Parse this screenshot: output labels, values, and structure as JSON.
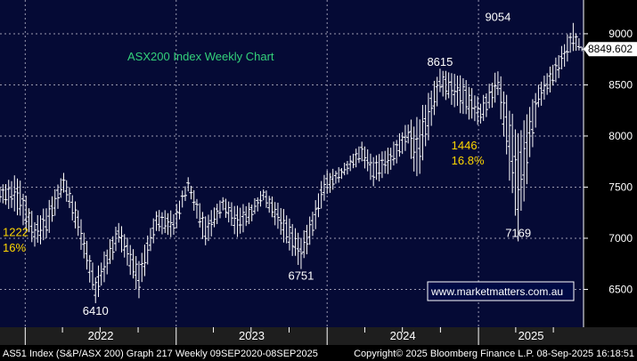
{
  "colors": {
    "background": "#000000",
    "plot_background": "#050a35",
    "grid": "#9a9ab0",
    "bars": "#ffffff",
    "annotation_white": "#ffffff",
    "annotation_yellow": "#ffd700",
    "title_green": "#33d17a",
    "year_strip": "#1e1e1e"
  },
  "footer": {
    "left": "AS51 Index (S&P/ASX 200) Graph 217  Weekly 09SEP2020-08SEP2025",
    "right": "Copyright© 2025 Bloomberg Finance L.P.    08-Sep-2025 16:18:51"
  },
  "chart_data": {
    "type": "ohlc",
    "title": "ASX200 Index Weekly Chart",
    "y_axis": {
      "ticks": [
        6500,
        7000,
        7500,
        8000,
        8500,
        9000
      ],
      "range": [
        6130,
        9330
      ],
      "position": "right"
    },
    "x_axis": {
      "years": [
        "2022",
        "2023",
        "2024",
        "2025"
      ],
      "range": [
        "2021-11-01",
        "2025-09-12"
      ]
    },
    "grid": true,
    "last_price": "8849.602",
    "watermark": "www.marketmatters.com.au",
    "annotations": [
      {
        "text": "9054",
        "x": "2025-02-17",
        "y": 9054,
        "color": "white",
        "placement": "above"
      },
      {
        "text": "8615",
        "x": "2024-09-30",
        "y": 8615,
        "color": "white",
        "placement": "above"
      },
      {
        "text": "7169",
        "x": "2025-04-07",
        "y": 7169,
        "color": "white",
        "placement": "below"
      },
      {
        "text": "6751",
        "x": "2023-10-30",
        "y": 6751,
        "color": "white",
        "placement": "below"
      },
      {
        "text": "6410",
        "x": "2022-06-20",
        "y": 6410,
        "color": "white",
        "placement": "below"
      },
      {
        "text": "1222",
        "x": "2021-11-01",
        "y": 7020,
        "color": "yellow",
        "placement": "right"
      },
      {
        "text": "16%",
        "x": "2021-11-01",
        "y": 6870,
        "color": "yellow",
        "placement": "right"
      },
      {
        "text": "1446",
        "x": "2024-10-21",
        "y": 7870,
        "color": "yellow",
        "placement": "right"
      },
      {
        "text": "16.8%",
        "x": "2024-10-21",
        "y": 7720,
        "color": "yellow",
        "placement": "right"
      }
    ],
    "series": [
      {
        "points": [
          [
            "2021-11-01",
            7380,
            7480
          ],
          [
            "2021-12-13",
            7300,
            7560
          ],
          [
            "2022-01-24",
            6960,
            7140
          ],
          [
            "2022-02-21",
            7040,
            7260
          ],
          [
            "2022-04-04",
            7480,
            7610
          ],
          [
            "2022-05-09",
            7050,
            7240
          ],
          [
            "2022-06-20",
            6410,
            6600
          ],
          [
            "2022-07-04",
            6550,
            6750
          ],
          [
            "2022-08-15",
            6980,
            7130
          ],
          [
            "2022-09-19",
            6630,
            6840
          ],
          [
            "2022-10-03",
            6480,
            6720
          ],
          [
            "2022-11-14",
            7100,
            7240
          ],
          [
            "2022-12-26",
            7050,
            7220
          ],
          [
            "2023-01-30",
            7480,
            7570
          ],
          [
            "2023-03-13",
            6960,
            7160
          ],
          [
            "2023-04-24",
            7280,
            7380
          ],
          [
            "2023-05-29",
            7050,
            7260
          ],
          [
            "2023-07-03",
            7200,
            7320
          ],
          [
            "2023-07-31",
            7380,
            7470
          ],
          [
            "2023-09-18",
            7020,
            7230
          ],
          [
            "2023-10-30",
            6751,
            6960
          ],
          [
            "2023-11-27",
            7050,
            7230
          ],
          [
            "2023-12-25",
            7420,
            7600
          ],
          [
            "2024-02-05",
            7600,
            7680
          ],
          [
            "2024-03-25",
            7780,
            7910
          ],
          [
            "2024-04-22",
            7560,
            7750
          ],
          [
            "2024-06-03",
            7700,
            7860
          ],
          [
            "2024-07-15",
            7940,
            8100
          ],
          [
            "2024-08-05",
            7640,
            8060
          ],
          [
            "2024-09-30",
            8450,
            8615
          ],
          [
            "2024-11-25",
            8270,
            8520
          ],
          [
            "2025-01-06",
            8140,
            8300
          ],
          [
            "2025-02-17",
            8420,
            8615
          ],
          [
            "2025-04-07",
            7169,
            7850
          ],
          [
            "2025-05-26",
            8300,
            8460
          ],
          [
            "2025-07-07",
            8560,
            8720
          ],
          [
            "2025-08-18",
            8880,
            9054
          ],
          [
            "2025-09-08",
            8830,
            8870
          ]
        ]
      }
    ]
  }
}
